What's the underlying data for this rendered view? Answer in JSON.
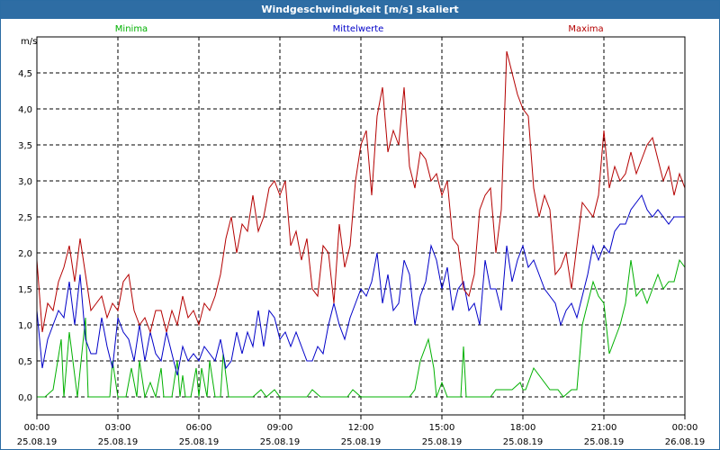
{
  "window": {
    "title": "Windgeschwindigkeit [m/s] skaliert"
  },
  "chart_data": {
    "type": "line",
    "title": "Windgeschwindigkeit [m/s] skaliert",
    "ylabel": "m/s",
    "ylim": [
      0,
      5
    ],
    "yticks": [
      "0,0",
      "0,5",
      "1,0",
      "1,5",
      "2,0",
      "2,5",
      "3,0",
      "3,5",
      "4,0",
      "4,5"
    ],
    "ytick_values": [
      0,
      0.5,
      1,
      1.5,
      2,
      2.5,
      3,
      3.5,
      4,
      4.5
    ],
    "xlim": [
      0,
      24
    ],
    "xtick_hours": [
      0,
      3,
      6,
      9,
      12,
      15,
      18,
      21,
      24
    ],
    "xtick_times": [
      "00:00",
      "03:00",
      "06:00",
      "09:00",
      "12:00",
      "15:00",
      "18:00",
      "21:00",
      "00:00"
    ],
    "xtick_dates": [
      "25.08.19",
      "25.08.19",
      "25.08.19",
      "25.08.19",
      "25.08.19",
      "25.08.19",
      "25.08.19",
      "25.08.19",
      "26.08.19"
    ],
    "grid": true,
    "series": [
      {
        "name": "Minima",
        "color": "#00b000",
        "x": [
          0.0,
          0.3,
          0.6,
          0.9,
          1.0,
          1.2,
          1.5,
          1.8,
          1.9,
          2.0,
          2.1,
          2.4,
          2.7,
          2.8,
          3.0,
          3.2,
          3.3,
          3.5,
          3.7,
          3.8,
          4.0,
          4.2,
          4.4,
          4.6,
          4.7,
          4.8,
          5.0,
          5.2,
          5.3,
          5.4,
          5.5,
          5.7,
          5.9,
          6.0,
          6.1,
          6.3,
          6.4,
          6.6,
          6.8,
          6.9,
          7.1,
          7.3,
          7.7,
          8.0,
          8.3,
          8.5,
          8.8,
          9.0,
          9.2,
          9.7,
          10.0,
          10.2,
          10.5,
          11.0,
          11.5,
          11.7,
          12.0,
          13.0,
          13.5,
          13.8,
          14.0,
          14.2,
          14.5,
          14.7,
          14.8,
          15.0,
          15.2,
          15.3,
          15.5,
          15.7,
          15.8,
          15.9,
          16.0,
          16.5,
          16.8,
          17.0,
          17.3,
          17.6,
          17.9,
          18.0,
          18.1,
          18.4,
          19.0,
          19.3,
          19.5,
          19.8,
          20.0,
          20.2,
          20.4,
          20.6,
          20.8,
          21.0,
          21.2,
          21.4,
          21.6,
          21.8,
          22.0,
          22.2,
          22.4,
          22.6,
          22.8,
          23.0,
          23.2,
          23.4,
          23.6,
          23.8,
          24.0
        ],
        "values": [
          0.0,
          0.0,
          0.1,
          0.8,
          0.0,
          0.9,
          0.0,
          1.1,
          0.0,
          0.0,
          0.0,
          0.0,
          0.0,
          0.5,
          0.0,
          0.0,
          0.0,
          0.4,
          0.0,
          0.5,
          0.0,
          0.2,
          0.0,
          0.4,
          0.0,
          0.0,
          0.0,
          0.5,
          0.0,
          0.3,
          0.0,
          0.0,
          0.4,
          0.0,
          0.4,
          0.0,
          0.5,
          0.0,
          0.0,
          0.6,
          0.0,
          0.0,
          0.0,
          0.0,
          0.1,
          0.0,
          0.1,
          0.0,
          0.0,
          0.0,
          0.0,
          0.1,
          0.0,
          0.0,
          0.0,
          0.1,
          0.0,
          0.0,
          0.0,
          0.0,
          0.1,
          0.5,
          0.8,
          0.4,
          0.0,
          0.2,
          0.0,
          0.0,
          0.0,
          0.0,
          0.7,
          0.0,
          0.0,
          0.0,
          0.0,
          0.1,
          0.1,
          0.1,
          0.2,
          0.1,
          0.1,
          0.4,
          0.1,
          0.1,
          0.0,
          0.1,
          0.1,
          1.0,
          1.3,
          1.6,
          1.4,
          1.3,
          0.6,
          0.8,
          1.0,
          1.3,
          1.9,
          1.4,
          1.5,
          1.3,
          1.5,
          1.7,
          1.5,
          1.6,
          1.6,
          1.9,
          1.8
        ]
      },
      {
        "name": "Mittelwerte",
        "color": "#0000c8",
        "x": [
          0.0,
          0.2,
          0.4,
          0.6,
          0.8,
          1.0,
          1.2,
          1.4,
          1.6,
          1.8,
          2.0,
          2.2,
          2.4,
          2.6,
          2.8,
          3.0,
          3.2,
          3.4,
          3.6,
          3.8,
          4.0,
          4.2,
          4.4,
          4.6,
          4.8,
          5.0,
          5.2,
          5.4,
          5.6,
          5.8,
          6.0,
          6.2,
          6.4,
          6.6,
          6.8,
          7.0,
          7.2,
          7.4,
          7.6,
          7.8,
          8.0,
          8.2,
          8.4,
          8.6,
          8.8,
          9.0,
          9.2,
          9.4,
          9.6,
          9.8,
          10.0,
          10.2,
          10.4,
          10.6,
          10.8,
          11.0,
          11.2,
          11.4,
          11.6,
          11.8,
          12.0,
          12.2,
          12.4,
          12.6,
          12.8,
          13.0,
          13.2,
          13.4,
          13.6,
          13.8,
          14.0,
          14.2,
          14.4,
          14.6,
          14.8,
          15.0,
          15.2,
          15.4,
          15.6,
          15.8,
          16.0,
          16.2,
          16.4,
          16.6,
          16.8,
          17.0,
          17.2,
          17.4,
          17.6,
          17.8,
          18.0,
          18.2,
          18.4,
          18.6,
          18.8,
          19.0,
          19.2,
          19.4,
          19.6,
          19.8,
          20.0,
          20.2,
          20.4,
          20.6,
          20.8,
          21.0,
          21.2,
          21.4,
          21.6,
          21.8,
          22.0,
          22.2,
          22.4,
          22.6,
          22.8,
          23.0,
          23.2,
          23.4,
          23.6,
          23.8,
          24.0
        ],
        "values": [
          1.2,
          0.4,
          0.8,
          1.0,
          1.2,
          1.1,
          1.6,
          1.0,
          1.7,
          0.8,
          0.6,
          0.6,
          1.1,
          0.7,
          0.4,
          1.1,
          0.9,
          0.8,
          0.5,
          1.0,
          0.5,
          0.9,
          0.6,
          0.5,
          0.9,
          0.6,
          0.3,
          0.7,
          0.5,
          0.6,
          0.5,
          0.7,
          0.6,
          0.5,
          0.8,
          0.4,
          0.5,
          0.9,
          0.6,
          0.9,
          0.7,
          1.2,
          0.7,
          1.2,
          1.1,
          0.8,
          0.9,
          0.7,
          0.9,
          0.7,
          0.5,
          0.5,
          0.7,
          0.6,
          1.0,
          1.3,
          1.0,
          0.8,
          1.1,
          1.3,
          1.5,
          1.4,
          1.6,
          2.0,
          1.3,
          1.7,
          1.2,
          1.3,
          1.9,
          1.7,
          1.0,
          1.4,
          1.6,
          2.1,
          1.9,
          1.5,
          1.8,
          1.2,
          1.5,
          1.6,
          1.2,
          1.3,
          1.0,
          1.9,
          1.5,
          1.5,
          1.2,
          2.1,
          1.6,
          1.9,
          2.1,
          1.8,
          1.9,
          1.7,
          1.5,
          1.4,
          1.3,
          1.0,
          1.2,
          1.3,
          1.1,
          1.4,
          1.7,
          2.1,
          1.9,
          2.1,
          2.0,
          2.3,
          2.4,
          2.4,
          2.6,
          2.7,
          2.8,
          2.6,
          2.5,
          2.6,
          2.5,
          2.4,
          2.5,
          2.5,
          2.5
        ]
      },
      {
        "name": "Maxima",
        "color": "#b40000",
        "x": [
          0.0,
          0.2,
          0.4,
          0.6,
          0.8,
          1.0,
          1.2,
          1.4,
          1.6,
          1.8,
          2.0,
          2.2,
          2.4,
          2.6,
          2.8,
          3.0,
          3.2,
          3.4,
          3.6,
          3.8,
          4.0,
          4.2,
          4.4,
          4.6,
          4.8,
          5.0,
          5.2,
          5.4,
          5.6,
          5.8,
          6.0,
          6.2,
          6.4,
          6.6,
          6.8,
          7.0,
          7.2,
          7.4,
          7.6,
          7.8,
          8.0,
          8.2,
          8.4,
          8.6,
          8.8,
          9.0,
          9.2,
          9.4,
          9.6,
          9.8,
          10.0,
          10.2,
          10.4,
          10.6,
          10.8,
          11.0,
          11.2,
          11.4,
          11.6,
          11.8,
          12.0,
          12.2,
          12.4,
          12.6,
          12.8,
          13.0,
          13.2,
          13.4,
          13.6,
          13.8,
          14.0,
          14.2,
          14.4,
          14.6,
          14.8,
          15.0,
          15.2,
          15.4,
          15.6,
          15.8,
          16.0,
          16.2,
          16.4,
          16.6,
          16.8,
          17.0,
          17.2,
          17.4,
          17.6,
          17.8,
          18.0,
          18.2,
          18.4,
          18.6,
          18.8,
          19.0,
          19.2,
          19.4,
          19.6,
          19.8,
          20.0,
          20.2,
          20.4,
          20.6,
          20.8,
          21.0,
          21.2,
          21.4,
          21.6,
          21.8,
          22.0,
          22.2,
          22.4,
          22.6,
          22.8,
          23.0,
          23.2,
          23.4,
          23.6,
          23.8,
          24.0
        ],
        "values": [
          1.9,
          0.9,
          1.3,
          1.2,
          1.6,
          1.8,
          2.1,
          1.6,
          2.2,
          1.7,
          1.2,
          1.3,
          1.4,
          1.1,
          1.3,
          1.2,
          1.6,
          1.7,
          1.2,
          1.0,
          1.1,
          0.9,
          1.2,
          1.2,
          0.9,
          1.2,
          1.0,
          1.4,
          1.1,
          1.2,
          1.0,
          1.3,
          1.2,
          1.4,
          1.7,
          2.2,
          2.5,
          2.0,
          2.4,
          2.3,
          2.8,
          2.3,
          2.5,
          2.9,
          3.0,
          2.8,
          3.0,
          2.1,
          2.3,
          1.9,
          2.2,
          1.5,
          1.4,
          2.1,
          2.0,
          1.3,
          2.4,
          1.8,
          2.1,
          3.0,
          3.5,
          3.7,
          2.8,
          3.9,
          4.3,
          3.4,
          3.7,
          3.5,
          4.3,
          3.2,
          2.9,
          3.4,
          3.3,
          3.0,
          3.1,
          2.8,
          3.0,
          2.2,
          2.1,
          1.5,
          1.4,
          1.7,
          2.6,
          2.8,
          2.9,
          2.0,
          2.6,
          4.8,
          4.5,
          4.2,
          4.0,
          3.9,
          2.9,
          2.5,
          2.8,
          2.6,
          1.7,
          1.8,
          2.0,
          1.5,
          2.1,
          2.7,
          2.6,
          2.5,
          2.8,
          3.7,
          2.9,
          3.2,
          3.0,
          3.1,
          3.4,
          3.1,
          3.3,
          3.5,
          3.6,
          3.3,
          3.0,
          3.2,
          2.8,
          3.1,
          2.9
        ]
      }
    ]
  }
}
